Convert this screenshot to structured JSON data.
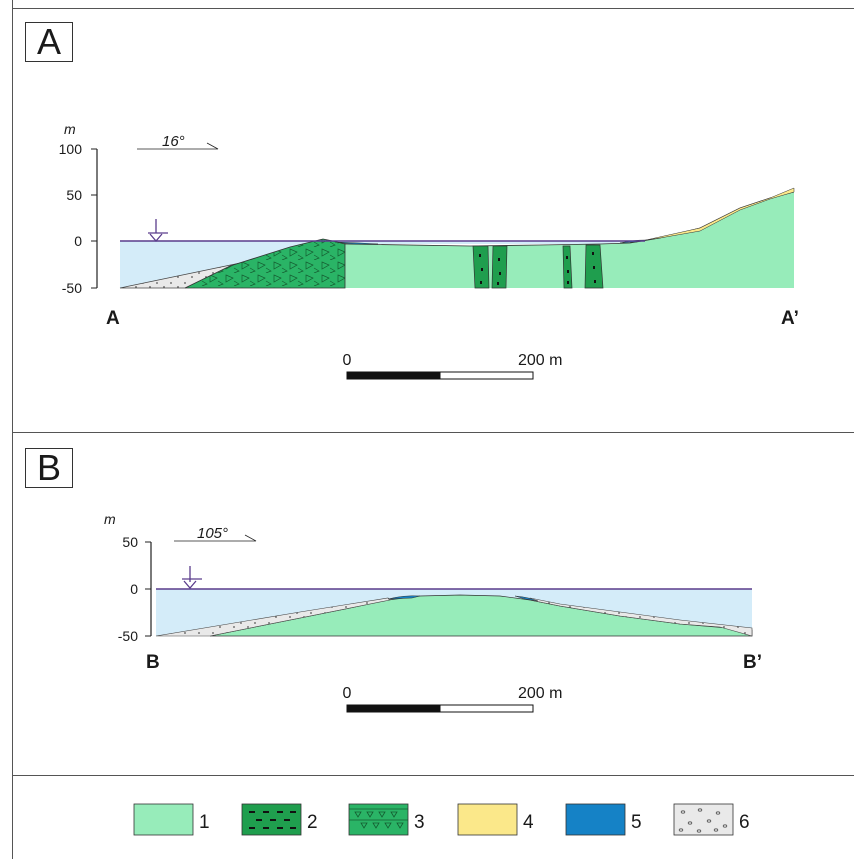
{
  "panels": [
    {
      "id": "A",
      "letter": "A",
      "unit": "m",
      "y_ticks": [
        "100",
        "50",
        "0",
        "-50"
      ],
      "direction": "16°",
      "start_label": "A",
      "end_label": "A’",
      "scale": {
        "start": "0",
        "end": "200 m"
      }
    },
    {
      "id": "B",
      "letter": "B",
      "unit": "m",
      "y_ticks": [
        "50",
        "0",
        "-50"
      ],
      "direction": "105°",
      "start_label": "B",
      "end_label": "B’",
      "scale": {
        "start": "0",
        "end": "200 m"
      }
    }
  ],
  "legend": [
    {
      "number": "1",
      "color": "#97ecba",
      "pattern": "plain"
    },
    {
      "number": "2",
      "color": "#1f9e4e",
      "pattern": "dashes"
    },
    {
      "number": "3",
      "color": "#2ab466",
      "pattern": "triangles"
    },
    {
      "number": "4",
      "color": "#fbe88a",
      "pattern": "plain"
    },
    {
      "number": "5",
      "color": "#1582c6",
      "pattern": "plain"
    },
    {
      "number": "6",
      "color": "#e9e9e9",
      "pattern": "dots"
    }
  ],
  "colors": {
    "water": "#d4ecf9",
    "water_line": "#5a3c8c",
    "rock_light_green": "#97ecba",
    "dike_green": "#1f9e4e",
    "breccia_green": "#2ab466",
    "sand_yellow": "#fbe88a",
    "silt_blue": "#1582c6",
    "gravel_grey": "#e9e9e9"
  }
}
